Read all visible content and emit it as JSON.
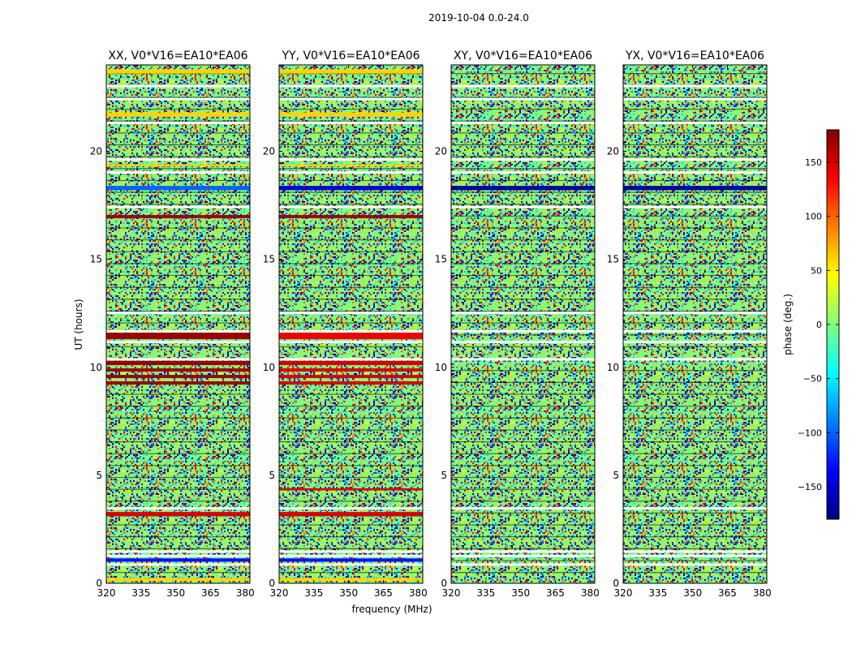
{
  "chart_data": {
    "type": "heatmap",
    "suptitle": "2019-10-04 0.0-24.0",
    "xlabel": "frequency (MHz)",
    "ylabel": "UT (hours)",
    "xlim": [
      320,
      382
    ],
    "ylim": [
      0,
      24
    ],
    "x_ticks": [
      320,
      335,
      350,
      365,
      380
    ],
    "y_ticks": [
      0,
      5,
      10,
      15,
      20
    ],
    "colorbar": {
      "label": "phase (deg.)",
      "range": [
        -180,
        180
      ],
      "ticks": [
        150,
        100,
        50,
        0,
        -50,
        -100,
        -150
      ],
      "colormap": "jet",
      "colors": [
        "#00007f",
        "#0000ff",
        "#007fff",
        "#00ffff",
        "#7fff7f",
        "#ffff00",
        "#ff7f00",
        "#ff0000",
        "#7f0000"
      ]
    },
    "panels": [
      {
        "title": "XX, V0*V16=EA10*EA06",
        "rows": [
          {
            "y": 0.1,
            "h": 0.15,
            "v": 60
          },
          {
            "y": 1.0,
            "h": 0.15,
            "v": -130
          },
          {
            "y": 3.1,
            "h": 0.2,
            "v": 150
          },
          {
            "y": 9.2,
            "h": 0.15,
            "v": 170
          },
          {
            "y": 9.5,
            "h": 0.15,
            "v": 170
          },
          {
            "y": 9.8,
            "h": 0.15,
            "v": 170
          },
          {
            "y": 10.1,
            "h": 0.2,
            "v": 170
          },
          {
            "y": 11.3,
            "h": 0.3,
            "v": 170
          },
          {
            "y": 16.9,
            "h": 0.15,
            "v": 170
          },
          {
            "y": 18.2,
            "h": 0.2,
            "v": -100
          },
          {
            "y": 19.3,
            "h": 0.1,
            "v": 60
          },
          {
            "y": 21.6,
            "h": 0.2,
            "v": 60
          },
          {
            "y": 23.6,
            "h": 0.2,
            "v": 60
          }
        ],
        "gaps": [
          0.85,
          1.25,
          1.45,
          3.45,
          10.35,
          11.15,
          11.65,
          12.5,
          17.4,
          19.0,
          19.6,
          21.3,
          22.4,
          23.0
        ]
      },
      {
        "title": "YY, V0*V16=EA10*EA06",
        "rows": [
          {
            "y": 0.1,
            "h": 0.15,
            "v": 60
          },
          {
            "y": 1.0,
            "h": 0.15,
            "v": -130
          },
          {
            "y": 3.1,
            "h": 0.2,
            "v": 150
          },
          {
            "y": 4.3,
            "h": 0.1,
            "v": 150
          },
          {
            "y": 9.2,
            "h": 0.15,
            "v": 150
          },
          {
            "y": 9.5,
            "h": 0.15,
            "v": 150
          },
          {
            "y": 9.8,
            "h": 0.15,
            "v": 150
          },
          {
            "y": 10.1,
            "h": 0.2,
            "v": 150
          },
          {
            "y": 11.3,
            "h": 0.3,
            "v": 140
          },
          {
            "y": 16.9,
            "h": 0.15,
            "v": 170
          },
          {
            "y": 18.2,
            "h": 0.2,
            "v": -150
          },
          {
            "y": 19.3,
            "h": 0.1,
            "v": 60
          },
          {
            "y": 21.6,
            "h": 0.2,
            "v": 60
          },
          {
            "y": 23.6,
            "h": 0.2,
            "v": 60
          }
        ],
        "gaps": [
          0.85,
          1.25,
          1.45,
          3.45,
          10.35,
          11.15,
          11.65,
          12.5,
          17.4,
          19.0,
          19.6,
          21.3,
          22.4,
          23.0
        ]
      },
      {
        "title": "XY, V0*V16=EA10*EA06",
        "rows": [
          {
            "y": 18.2,
            "h": 0.2,
            "v": -170
          }
        ],
        "gaps": [
          0.85,
          1.25,
          1.45,
          3.45,
          10.35,
          11.15,
          11.65,
          12.5,
          17.4,
          19.0,
          19.6,
          21.3,
          22.4,
          23.0
        ]
      },
      {
        "title": "YX, V0*V16=EA10*EA06",
        "rows": [
          {
            "y": 18.2,
            "h": 0.2,
            "v": -170
          }
        ],
        "gaps": [
          0.85,
          1.25,
          1.45,
          3.45,
          10.35,
          11.15,
          11.65,
          12.5,
          17.4,
          19.0,
          19.6,
          21.3,
          22.4,
          23.0
        ]
      }
    ]
  }
}
